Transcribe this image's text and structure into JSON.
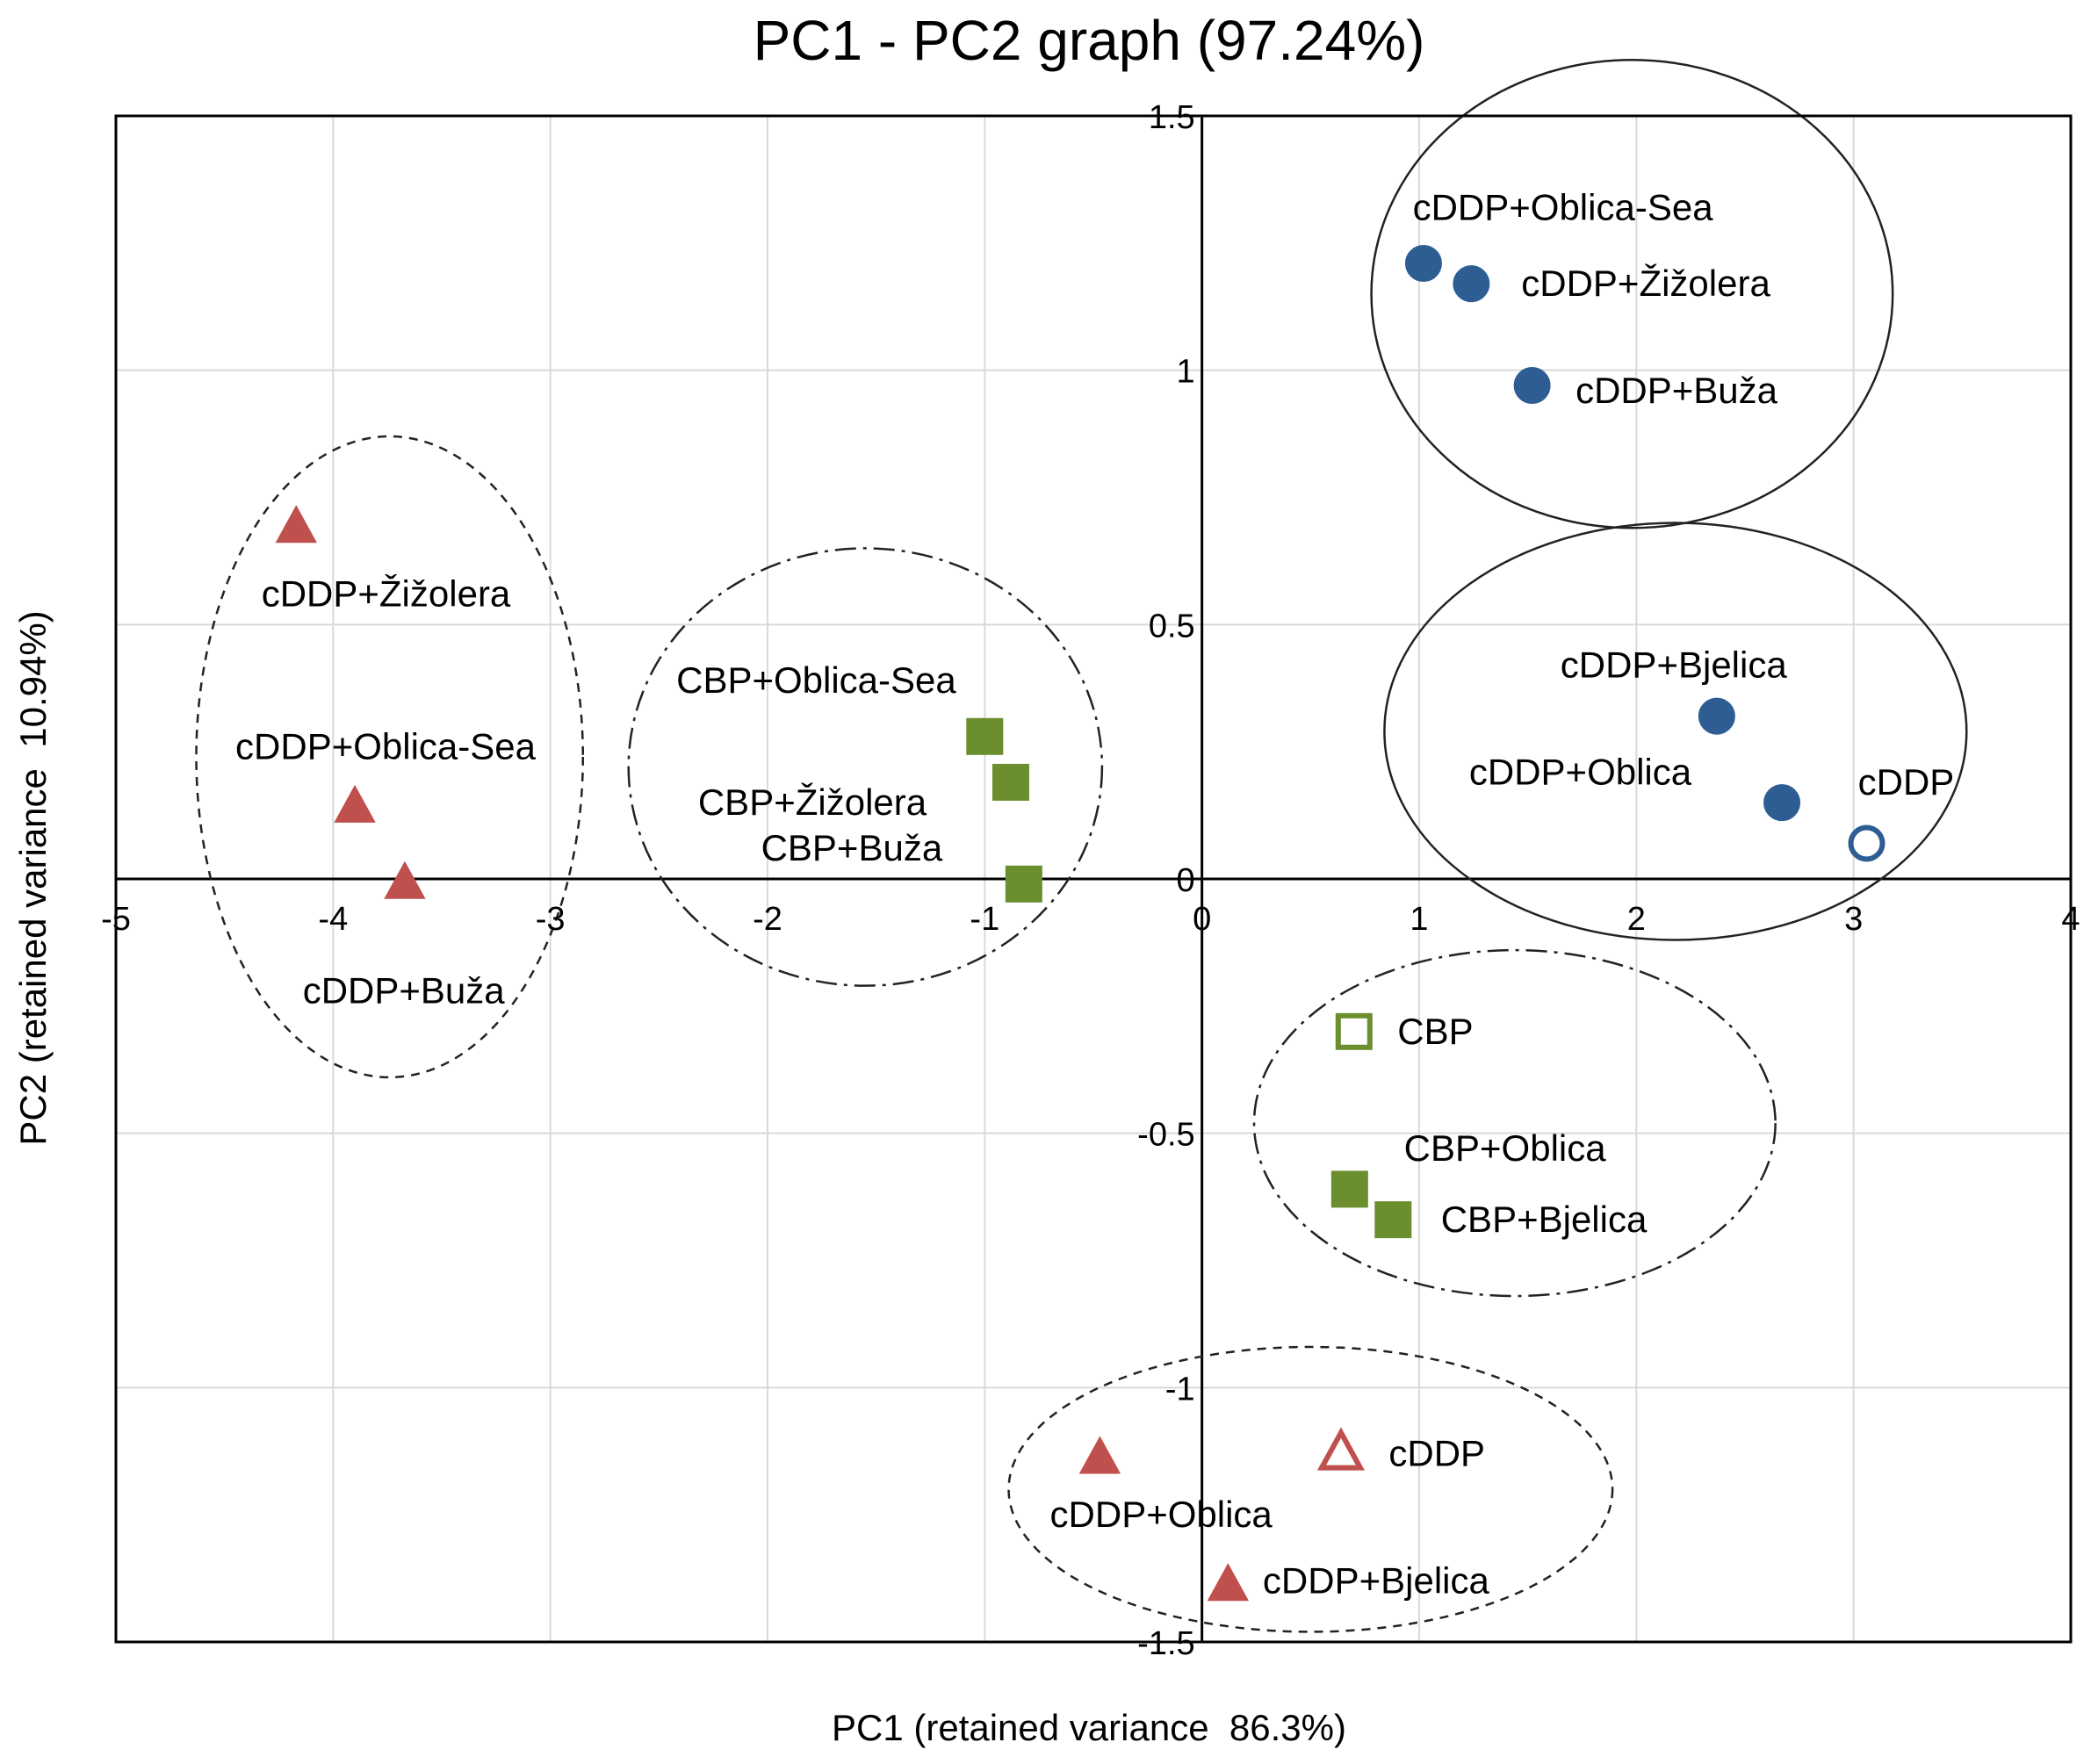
{
  "chart_data": {
    "type": "scatter",
    "title": "PC1 - PC2 graph (97.24%)",
    "xlabel": "PC1 (retained variance  86.3%)",
    "ylabel": "PC2 (retained variance  10.94%)",
    "xlim": [
      -5,
      4
    ],
    "ylim": [
      -1.5,
      1.5
    ],
    "grid": true,
    "x_ticks": [
      "-5",
      "-4",
      "-3",
      "-2",
      "-1",
      "0",
      "1",
      "2",
      "3",
      "4"
    ],
    "y_ticks": [
      "1.5",
      "1",
      "0.5",
      "0",
      "-0.5",
      "-1",
      "-1.5"
    ],
    "colors": {
      "blue": "#2e5d93",
      "red": "#c0504d",
      "green": "#6b8e2f",
      "grid": "#d9d9d9"
    },
    "points": [
      {
        "label": "cDDP+Oblica-Sea",
        "x": 1.02,
        "y": 1.21,
        "marker": "circle",
        "filled": true,
        "color": "#2e5d93",
        "lx": 0.97,
        "ly": 1.32,
        "anchor": "start"
      },
      {
        "label": "cDDP+Žižolera",
        "x": 1.24,
        "y": 1.17,
        "marker": "circle",
        "filled": true,
        "color": "#2e5d93",
        "lx": 1.47,
        "ly": 1.17,
        "anchor": "start"
      },
      {
        "label": "cDDP+Buža",
        "x": 1.52,
        "y": 0.97,
        "marker": "circle",
        "filled": true,
        "color": "#2e5d93",
        "lx": 1.72,
        "ly": 0.96,
        "anchor": "start"
      },
      {
        "label": "cDDP+Bjelica",
        "x": 2.37,
        "y": 0.32,
        "marker": "circle",
        "filled": true,
        "color": "#2e5d93",
        "lx": 1.65,
        "ly": 0.42,
        "anchor": "start"
      },
      {
        "label": "cDDP+Oblica",
        "x": 2.67,
        "y": 0.15,
        "marker": "circle",
        "filled": true,
        "color": "#2e5d93",
        "lx": 1.23,
        "ly": 0.21,
        "anchor": "start"
      },
      {
        "label": "cDDP",
        "x": 3.06,
        "y": 0.07,
        "marker": "circle",
        "filled": false,
        "color": "#2e5d93",
        "lx": 3.02,
        "ly": 0.19,
        "anchor": "start"
      },
      {
        "label": "CBP+Oblica-Sea",
        "x": -1.0,
        "y": 0.28,
        "marker": "square",
        "filled": true,
        "color": "#6b8e2f",
        "lx": -2.42,
        "ly": 0.39,
        "anchor": "start"
      },
      {
        "label": "CBP+Žižolera",
        "x": -0.88,
        "y": 0.19,
        "marker": "square",
        "filled": true,
        "color": "#6b8e2f",
        "lx": -2.32,
        "ly": 0.15,
        "anchor": "start"
      },
      {
        "label": "CBP+Buža",
        "x": -0.82,
        "y": -0.01,
        "marker": "square",
        "filled": true,
        "color": "#6b8e2f",
        "lx": -2.03,
        "ly": 0.06,
        "anchor": "start"
      },
      {
        "label": "CBP",
        "x": 0.7,
        "y": -0.3,
        "marker": "square",
        "filled": false,
        "color": "#6b8e2f",
        "lx": 0.9,
        "ly": -0.3,
        "anchor": "start"
      },
      {
        "label": "CBP+Oblica",
        "x": 0.68,
        "y": -0.61,
        "marker": "square",
        "filled": true,
        "color": "#6b8e2f",
        "lx": 0.93,
        "ly": -0.53,
        "anchor": "start"
      },
      {
        "label": "CBP+Bjelica",
        "x": 0.88,
        "y": -0.67,
        "marker": "square",
        "filled": true,
        "color": "#6b8e2f",
        "lx": 1.1,
        "ly": -0.67,
        "anchor": "start"
      },
      {
        "label": "cDDP+Žižolera",
        "x": -4.17,
        "y": 0.69,
        "marker": "triangle",
        "filled": true,
        "color": "#c0504d",
        "lx": -4.33,
        "ly": 0.56,
        "anchor": "start"
      },
      {
        "label": "cDDP+Oblica-Sea",
        "x": -3.9,
        "y": 0.14,
        "marker": "triangle",
        "filled": true,
        "color": "#c0504d",
        "lx": -4.45,
        "ly": 0.26,
        "anchor": "start"
      },
      {
        "label": "cDDP+Buža",
        "x": -3.67,
        "y": -0.01,
        "marker": "triangle",
        "filled": true,
        "color": "#c0504d",
        "lx": -4.14,
        "ly": -0.22,
        "anchor": "start"
      },
      {
        "label": "cDDP",
        "x": 0.64,
        "y": -1.13,
        "marker": "triangle",
        "filled": false,
        "color": "#c0504d",
        "lx": 0.86,
        "ly": -1.13,
        "anchor": "start"
      },
      {
        "label": "cDDP+Oblica",
        "x": -0.47,
        "y": -1.14,
        "marker": "triangle",
        "filled": true,
        "color": "#c0504d",
        "lx": -0.7,
        "ly": -1.25,
        "anchor": "start"
      },
      {
        "label": "cDDP+Bjelica",
        "x": 0.12,
        "y": -1.39,
        "marker": "triangle",
        "filled": true,
        "color": "#c0504d",
        "lx": 0.28,
        "ly": -1.38,
        "anchor": "start"
      }
    ],
    "ellipses": [
      {
        "group": "cDDP blue upper",
        "cx": 1.98,
        "cy": 1.15,
        "rx": 1.2,
        "ry": 0.46,
        "style": "solid"
      },
      {
        "group": "cDDP blue lower",
        "cx": 2.18,
        "cy": 0.29,
        "rx": 1.34,
        "ry": 0.41,
        "style": "solid"
      },
      {
        "group": "CBP green left",
        "cx": -1.55,
        "cy": 0.22,
        "rx": 1.09,
        "ry": 0.43,
        "style": "dashdot"
      },
      {
        "group": "CBP green right",
        "cx": 1.44,
        "cy": -0.48,
        "rx": 1.2,
        "ry": 0.34,
        "style": "dashdot"
      },
      {
        "group": "cDDP red left",
        "cx": -3.74,
        "cy": 0.24,
        "rx": 0.89,
        "ry": 0.63,
        "style": "dashed"
      },
      {
        "group": "cDDP red bottom",
        "cx": 0.5,
        "cy": -1.2,
        "rx": 1.39,
        "ry": 0.28,
        "style": "dashed"
      }
    ]
  }
}
